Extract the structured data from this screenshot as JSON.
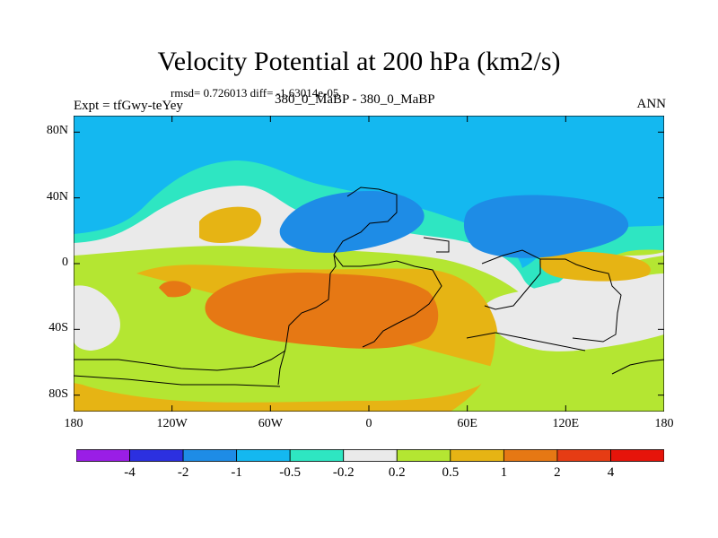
{
  "title": "Velocity Potential at 200 hPa (km2/s)",
  "stats": "rmsd= 0.726013 diff= -1.63014e-05",
  "experiment_label": "Expt = tfGwy-teYey",
  "case_label": "380_0_MaBP - 380_0_MaBP",
  "season": "ANN",
  "lat_ticks": [
    {
      "value": 80,
      "label": "80N"
    },
    {
      "value": 40,
      "label": "40N"
    },
    {
      "value": 0,
      "label": "0"
    },
    {
      "value": -40,
      "label": "40S"
    },
    {
      "value": -80,
      "label": "80S"
    }
  ],
  "lon_ticks": [
    {
      "value": -180,
      "label": "180"
    },
    {
      "value": -120,
      "label": "120W"
    },
    {
      "value": -60,
      "label": "60W"
    },
    {
      "value": 0,
      "label": "0"
    },
    {
      "value": 60,
      "label": "60E"
    },
    {
      "value": 120,
      "label": "120E"
    },
    {
      "value": 180,
      "label": "180"
    }
  ],
  "colorbar": {
    "boundaries": [
      "-4",
      "-2",
      "-1",
      "-0.5",
      "-0.2",
      "0.2",
      "0.5",
      "1",
      "2",
      "4"
    ],
    "colors": [
      "#9a1ee6",
      "#2c30e0",
      "#1e8ce6",
      "#14b8f0",
      "#2ee6c2",
      "#eaeaea",
      "#b4e632",
      "#e6b414",
      "#e67814",
      "#e63c14",
      "#e6140a"
    ]
  },
  "chart_data": {
    "type": "heatmap",
    "title": "Velocity Potential at 200 hPa (km2/s)",
    "variable": "velocity potential difference",
    "units": "km2/s",
    "xlim": [
      -180,
      180
    ],
    "ylim": [
      -90,
      90
    ],
    "contour_levels": [
      -4,
      -2,
      -1,
      -0.5,
      -0.2,
      0.2,
      0.5,
      1,
      2,
      4
    ],
    "rmsd": 0.726013,
    "diff": -1.63014e-05,
    "regions": [
      {
        "name": "northern high latitudes",
        "range": "-1 to -0.5"
      },
      {
        "name": "mid-latitude lows (40N, 60W-0 and 60E-150E)",
        "range": "-2 to -1"
      },
      {
        "name": "central tropical/southern max (60W-30E, 20S-45S)",
        "range": "1 to 2"
      },
      {
        "name": "southern mid/high latitudes",
        "range": "0.5 to 1"
      },
      {
        "name": "southern west Pacific and Indian-Australian neutral zones",
        "range": "-0.2 to 0.2"
      }
    ]
  }
}
